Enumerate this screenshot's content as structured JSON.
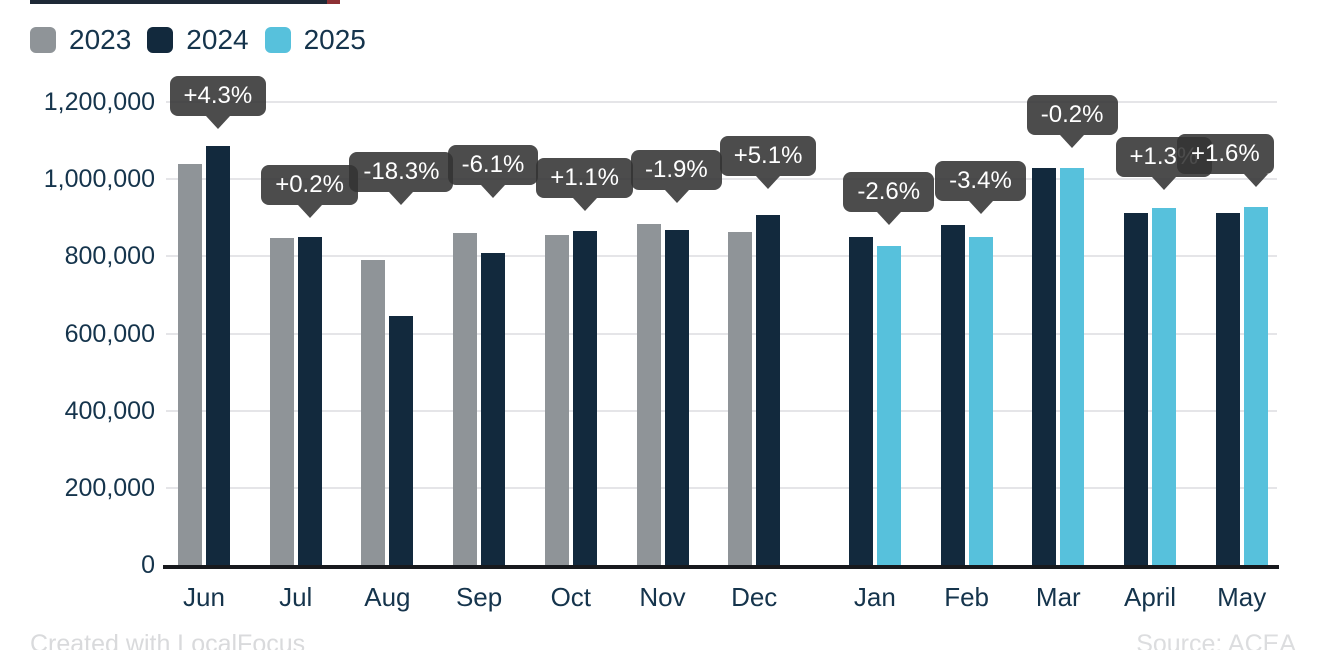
{
  "footer": {
    "credit": "Created with LocalFocus",
    "source": "Source: ACEA"
  },
  "colors": {
    "series_2023": "#8f9498",
    "series_2024": "#12293d",
    "series_2025": "#57c1dc",
    "axis_text": "#15344c",
    "gridline": "#e5e5e8",
    "axis_line": "#17191d",
    "tooltip_bg": "rgba(51,51,51,0.88)",
    "tooltip_text": "#ffffff"
  },
  "chart_data": {
    "type": "bar",
    "title": "",
    "categories": [
      "Jun",
      "Jul",
      "Aug",
      "Sep",
      "Oct",
      "Nov",
      "Dec",
      "Jan",
      "Feb",
      "Mar",
      "April",
      "May"
    ],
    "series": [
      {
        "name": "2023",
        "color": "#8f9498",
        "values": [
          1040000,
          848000,
          790000,
          860000,
          855000,
          885000,
          862000,
          null,
          null,
          null,
          null,
          null
        ]
      },
      {
        "name": "2024",
        "color": "#12293d",
        "values": [
          1085000,
          850000,
          645000,
          808000,
          865000,
          868000,
          906000,
          850000,
          880000,
          1030000,
          912000,
          912000
        ]
      },
      {
        "name": "2025",
        "color": "#57c1dc",
        "values": [
          null,
          null,
          null,
          null,
          null,
          null,
          null,
          828000,
          850000,
          1028000,
          924000,
          927000
        ]
      }
    ],
    "change_labels": [
      "+4.3%",
      "+0.2%",
      "-18.3%",
      "-6.1%",
      "+1.1%",
      "-1.9%",
      "+5.1%",
      "-2.6%",
      "-3.4%",
      "-0.2%",
      "+1.3%",
      "+1.6%"
    ],
    "ylim": [
      0,
      1200000
    ],
    "yticks": [
      0,
      200000,
      400000,
      600000,
      800000,
      1000000,
      1200000
    ],
    "ytick_labels": [
      "0",
      "200,000",
      "400,000",
      "600,000",
      "800,000",
      "1,000,000",
      "1,200,000"
    ],
    "grid": true,
    "legend_position": "top-left"
  }
}
